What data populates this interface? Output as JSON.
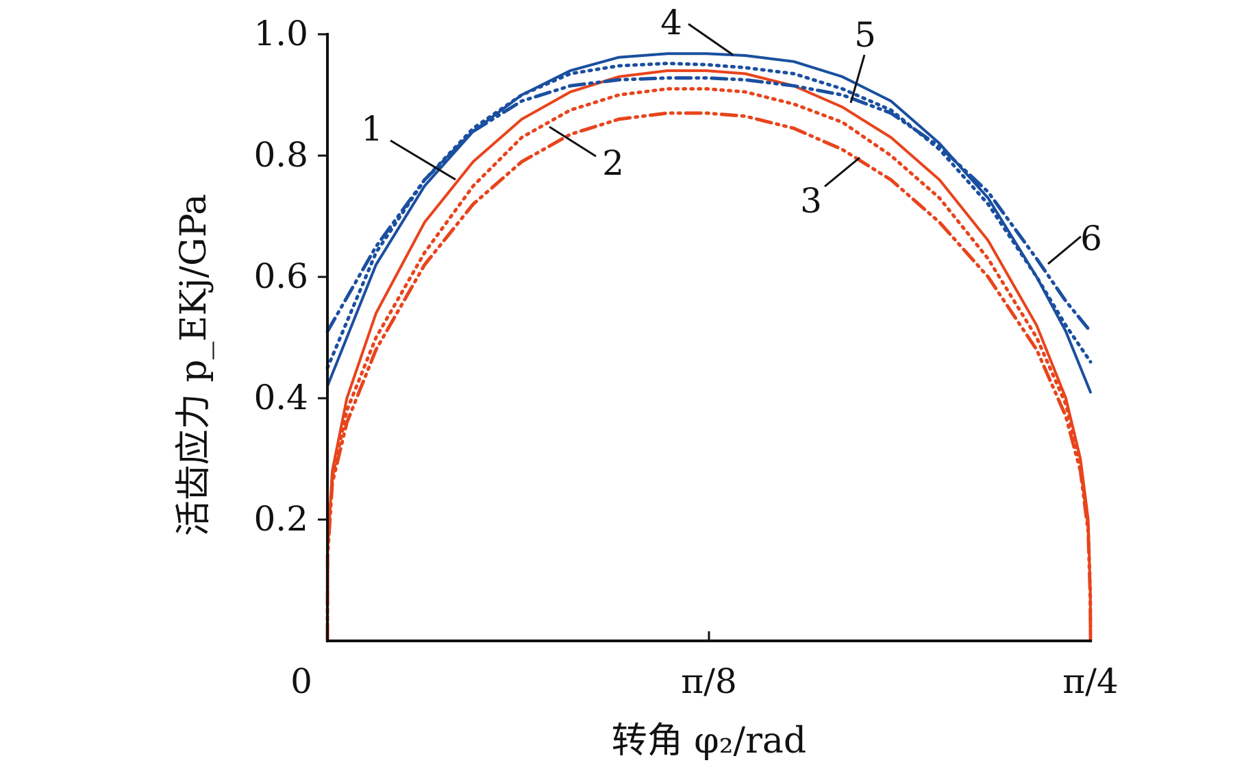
{
  "chart_data": {
    "type": "line",
    "xlabel": "转角 φ₂/rad",
    "ylabel": "活齿应力 p_EKj/GPa",
    "xlim": [
      0,
      0.7853982
    ],
    "ylim": [
      0,
      1.0
    ],
    "x_ticks": [
      {
        "value": 0,
        "label": "0"
      },
      {
        "value": 0.3926991,
        "label": "π/8"
      },
      {
        "value": 0.7853982,
        "label": "π/4"
      }
    ],
    "y_ticks": [
      {
        "value": 0.2,
        "label": "0.2"
      },
      {
        "value": 0.4,
        "label": "0.4"
      },
      {
        "value": 0.6,
        "label": "0.6"
      },
      {
        "value": 0.8,
        "label": "0.8"
      },
      {
        "value": 1.0,
        "label": "1.0"
      }
    ],
    "grid": false,
    "legend": "none",
    "series": [
      {
        "label": "1",
        "color": "#e8441c",
        "style": "solid",
        "x": [
          0,
          0.0002,
          0.005,
          0.02,
          0.05,
          0.1,
          0.15,
          0.2,
          0.25,
          0.3,
          0.35,
          0.39,
          0.43,
          0.48,
          0.53,
          0.58,
          0.63,
          0.68,
          0.73,
          0.76,
          0.775,
          0.783,
          0.7852,
          0.7854
        ],
        "y": [
          0,
          0.15,
          0.28,
          0.4,
          0.54,
          0.69,
          0.79,
          0.86,
          0.905,
          0.93,
          0.94,
          0.94,
          0.935,
          0.915,
          0.88,
          0.83,
          0.76,
          0.66,
          0.52,
          0.4,
          0.3,
          0.2,
          0.08,
          0
        ]
      },
      {
        "label": "2",
        "color": "#e8441c",
        "style": "dotted",
        "x": [
          0,
          0.0002,
          0.005,
          0.02,
          0.05,
          0.1,
          0.15,
          0.2,
          0.25,
          0.3,
          0.35,
          0.39,
          0.43,
          0.48,
          0.53,
          0.58,
          0.63,
          0.68,
          0.73,
          0.76,
          0.775,
          0.783,
          0.7852,
          0.7854
        ],
        "y": [
          0,
          0.15,
          0.27,
          0.38,
          0.5,
          0.64,
          0.75,
          0.83,
          0.875,
          0.9,
          0.91,
          0.91,
          0.905,
          0.885,
          0.855,
          0.8,
          0.73,
          0.63,
          0.5,
          0.39,
          0.29,
          0.19,
          0.08,
          0
        ]
      },
      {
        "label": "3",
        "color": "#e8441c",
        "style": "dash-dot",
        "x": [
          0,
          0.0002,
          0.005,
          0.02,
          0.05,
          0.1,
          0.15,
          0.2,
          0.25,
          0.3,
          0.35,
          0.39,
          0.43,
          0.48,
          0.53,
          0.58,
          0.63,
          0.68,
          0.73,
          0.76,
          0.775,
          0.783,
          0.7852,
          0.7854
        ],
        "y": [
          0,
          0.14,
          0.26,
          0.36,
          0.48,
          0.62,
          0.72,
          0.79,
          0.835,
          0.86,
          0.87,
          0.87,
          0.865,
          0.845,
          0.81,
          0.76,
          0.69,
          0.6,
          0.48,
          0.37,
          0.28,
          0.18,
          0.07,
          0
        ]
      },
      {
        "label": "4",
        "color": "#1a4fa0",
        "style": "solid",
        "x": [
          0,
          0.05,
          0.1,
          0.15,
          0.2,
          0.25,
          0.3,
          0.35,
          0.39,
          0.43,
          0.48,
          0.53,
          0.58,
          0.63,
          0.68,
          0.73,
          0.76,
          0.7854
        ],
        "y": [
          0.42,
          0.62,
          0.75,
          0.84,
          0.9,
          0.94,
          0.962,
          0.968,
          0.968,
          0.965,
          0.955,
          0.93,
          0.89,
          0.82,
          0.73,
          0.6,
          0.51,
          0.41
        ]
      },
      {
        "label": "5",
        "color": "#1a4fa0",
        "style": "dotted",
        "x": [
          0,
          0.05,
          0.1,
          0.15,
          0.2,
          0.25,
          0.3,
          0.35,
          0.39,
          0.43,
          0.48,
          0.53,
          0.58,
          0.63,
          0.68,
          0.73,
          0.76,
          0.7854
        ],
        "y": [
          0.45,
          0.64,
          0.76,
          0.845,
          0.9,
          0.935,
          0.948,
          0.952,
          0.95,
          0.945,
          0.935,
          0.91,
          0.875,
          0.81,
          0.72,
          0.6,
          0.52,
          0.46
        ]
      },
      {
        "label": "6",
        "color": "#1a4fa0",
        "style": "dash-dot",
        "x": [
          0,
          0.05,
          0.1,
          0.15,
          0.2,
          0.25,
          0.3,
          0.35,
          0.39,
          0.43,
          0.48,
          0.53,
          0.58,
          0.63,
          0.68,
          0.73,
          0.76,
          0.7854
        ],
        "y": [
          0.51,
          0.65,
          0.76,
          0.84,
          0.89,
          0.915,
          0.925,
          0.928,
          0.928,
          0.925,
          0.915,
          0.9,
          0.87,
          0.815,
          0.74,
          0.63,
          0.56,
          0.51
        ]
      }
    ],
    "annotations": [
      {
        "text": "1",
        "series": "1"
      },
      {
        "text": "2",
        "series": "2"
      },
      {
        "text": "3",
        "series": "3"
      },
      {
        "text": "4",
        "series": "4"
      },
      {
        "text": "5",
        "series": "5"
      },
      {
        "text": "6",
        "series": "6"
      }
    ]
  }
}
